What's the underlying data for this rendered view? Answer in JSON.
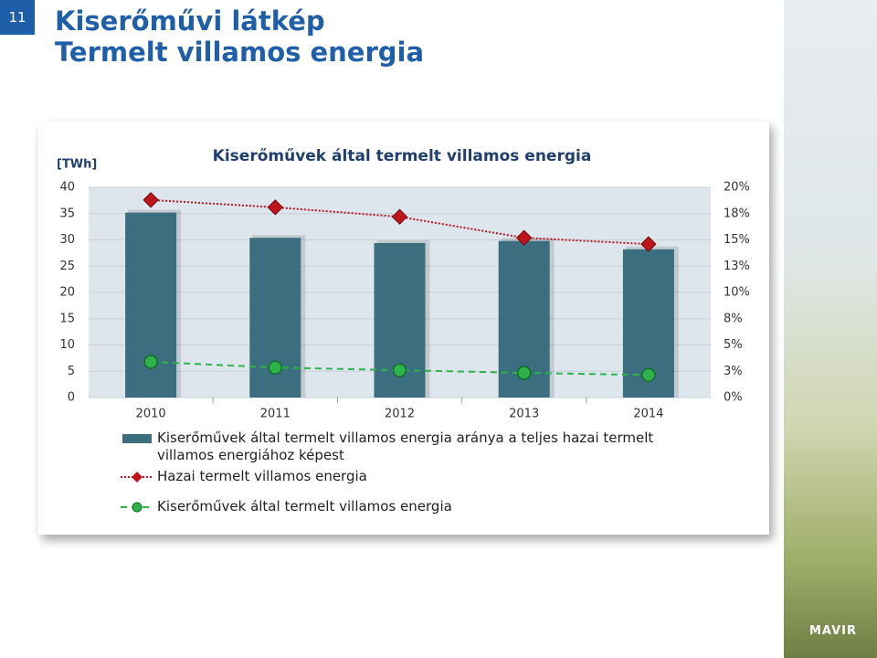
{
  "page_number": "11",
  "slide_title": [
    "Kiserőművi látkép",
    "Termelt villamos energia"
  ],
  "logo": "MAVIR",
  "chart_data": {
    "type": "bar",
    "title": "Kiserőművek által termelt villamos energia",
    "y_label": "[TWh]",
    "categories": [
      "2010",
      "2011",
      "2012",
      "2013",
      "2014"
    ],
    "ylim": [
      0,
      40
    ],
    "yticks": [
      0,
      5,
      10,
      15,
      20,
      25,
      30,
      35,
      40
    ],
    "y2lim": [
      0,
      20
    ],
    "y2ticks": [
      0,
      {
        "value": 2.5,
        "label": "3%"
      },
      {
        "value": 5,
        "label": "5%"
      },
      {
        "value": 7.5,
        "label": "8%"
      },
      {
        "value": 10,
        "label": "10%"
      },
      {
        "value": 12.5,
        "label": "13%"
      },
      {
        "value": 15,
        "label": "15%"
      },
      {
        "value": 17.5,
        "label": "18%"
      },
      {
        "value": 20,
        "label": "20%"
      }
    ],
    "y2tick_zero_label": "0%",
    "series": [
      {
        "name": "Kiserőművek által termelt villamos energia aránya a teljes hazai termelt villamos energiához képest",
        "type": "bar",
        "axis": "y2",
        "color": "#3b6e7e",
        "values": [
          17.6,
          15.2,
          14.7,
          14.9,
          14.1
        ]
      },
      {
        "name": "Hazai termelt villamos energia",
        "type": "line",
        "color": "#c0141c",
        "values": [
          37.6,
          36.2,
          34.4,
          30.4,
          29.2
        ]
      },
      {
        "name": "Kiserőművek által termelt villamos energia",
        "type": "line",
        "color": "#2db34a",
        "values": [
          6.8,
          5.7,
          5.2,
          4.7,
          4.3
        ]
      }
    ]
  }
}
